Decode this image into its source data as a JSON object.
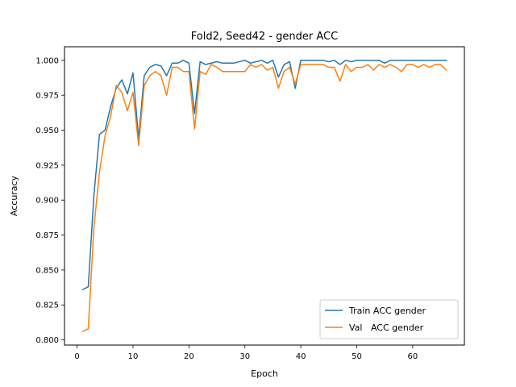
{
  "chart_data": {
    "type": "line",
    "title": "Fold2, Seed42 - gender ACC",
    "xlabel": "Epoch",
    "ylabel": "Accuracy",
    "xlim": [
      -2.25,
      69.25
    ],
    "ylim": [
      0.7963,
      1.0097
    ],
    "xticks": [
      0,
      10,
      20,
      30,
      40,
      50,
      60
    ],
    "yticks": [
      0.8,
      0.825,
      0.85,
      0.875,
      0.9,
      0.925,
      0.95,
      0.975,
      1.0
    ],
    "ytick_labels": [
      "0.800",
      "0.825",
      "0.850",
      "0.875",
      "0.900",
      "0.925",
      "0.950",
      "0.975",
      "1.000"
    ],
    "grid": false,
    "legend_position": "lower-right",
    "x": [
      1,
      2,
      3,
      4,
      5,
      6,
      7,
      8,
      9,
      10,
      11,
      12,
      13,
      14,
      15,
      16,
      17,
      18,
      19,
      20,
      21,
      22,
      23,
      24,
      25,
      26,
      27,
      28,
      29,
      30,
      31,
      32,
      33,
      34,
      35,
      36,
      37,
      38,
      39,
      40,
      41,
      42,
      43,
      44,
      45,
      46,
      47,
      48,
      49,
      50,
      51,
      52,
      53,
      54,
      55,
      56,
      57,
      58,
      59,
      60,
      61,
      62,
      63,
      64,
      65,
      66
    ],
    "series": [
      {
        "name": "Train ACC gender",
        "color": "#1f77b4",
        "values": [
          0.836,
          0.838,
          0.903,
          0.947,
          0.95,
          0.967,
          0.98,
          0.986,
          0.976,
          0.991,
          0.944,
          0.989,
          0.995,
          0.997,
          0.996,
          0.989,
          0.998,
          0.998,
          1.0,
          0.998,
          0.962,
          0.999,
          0.997,
          0.998,
          0.999,
          0.998,
          0.998,
          0.998,
          0.999,
          1.0,
          0.998,
          0.999,
          1.0,
          0.998,
          1.0,
          0.988,
          0.997,
          0.999,
          0.98,
          1.0,
          1.0,
          1.0,
          1.0,
          1.0,
          0.999,
          1.0,
          0.997,
          1.0,
          0.999,
          1.0,
          1.0,
          1.0,
          1.0,
          1.0,
          0.998,
          1.0,
          1.0,
          1.0,
          1.0,
          1.0,
          1.0,
          1.0,
          1.0,
          1.0,
          1.0,
          1.0
        ]
      },
      {
        "name": "Val   ACC gender",
        "color": "#ff7f0e",
        "values": [
          0.806,
          0.808,
          0.88,
          0.92,
          0.946,
          0.96,
          0.982,
          0.977,
          0.964,
          0.977,
          0.939,
          0.982,
          0.989,
          0.992,
          0.989,
          0.975,
          0.995,
          0.995,
          0.992,
          0.992,
          0.951,
          0.992,
          0.99,
          0.997,
          0.995,
          0.992,
          0.992,
          0.992,
          0.992,
          0.992,
          0.997,
          0.995,
          0.997,
          0.993,
          0.995,
          0.98,
          0.992,
          0.995,
          0.983,
          0.997,
          0.997,
          0.997,
          0.997,
          0.997,
          0.995,
          0.995,
          0.985,
          0.997,
          0.992,
          0.995,
          0.995,
          0.997,
          0.993,
          0.997,
          0.995,
          0.997,
          0.995,
          0.992,
          0.997,
          0.997,
          0.995,
          0.997,
          0.995,
          0.997,
          0.997,
          0.993
        ]
      }
    ]
  }
}
